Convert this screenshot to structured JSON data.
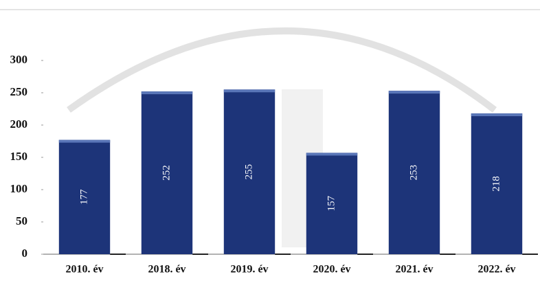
{
  "chart_data": {
    "type": "bar",
    "categories": [
      "2010. év",
      "2018. év",
      "2019. év",
      "2020. év",
      "2021. év",
      "2022. év"
    ],
    "values": [
      177,
      252,
      255,
      157,
      253,
      218
    ],
    "color": "#1d3479",
    "ylim": [
      0,
      300
    ],
    "yticks": [
      0,
      50,
      100,
      150,
      200,
      250,
      300
    ]
  }
}
